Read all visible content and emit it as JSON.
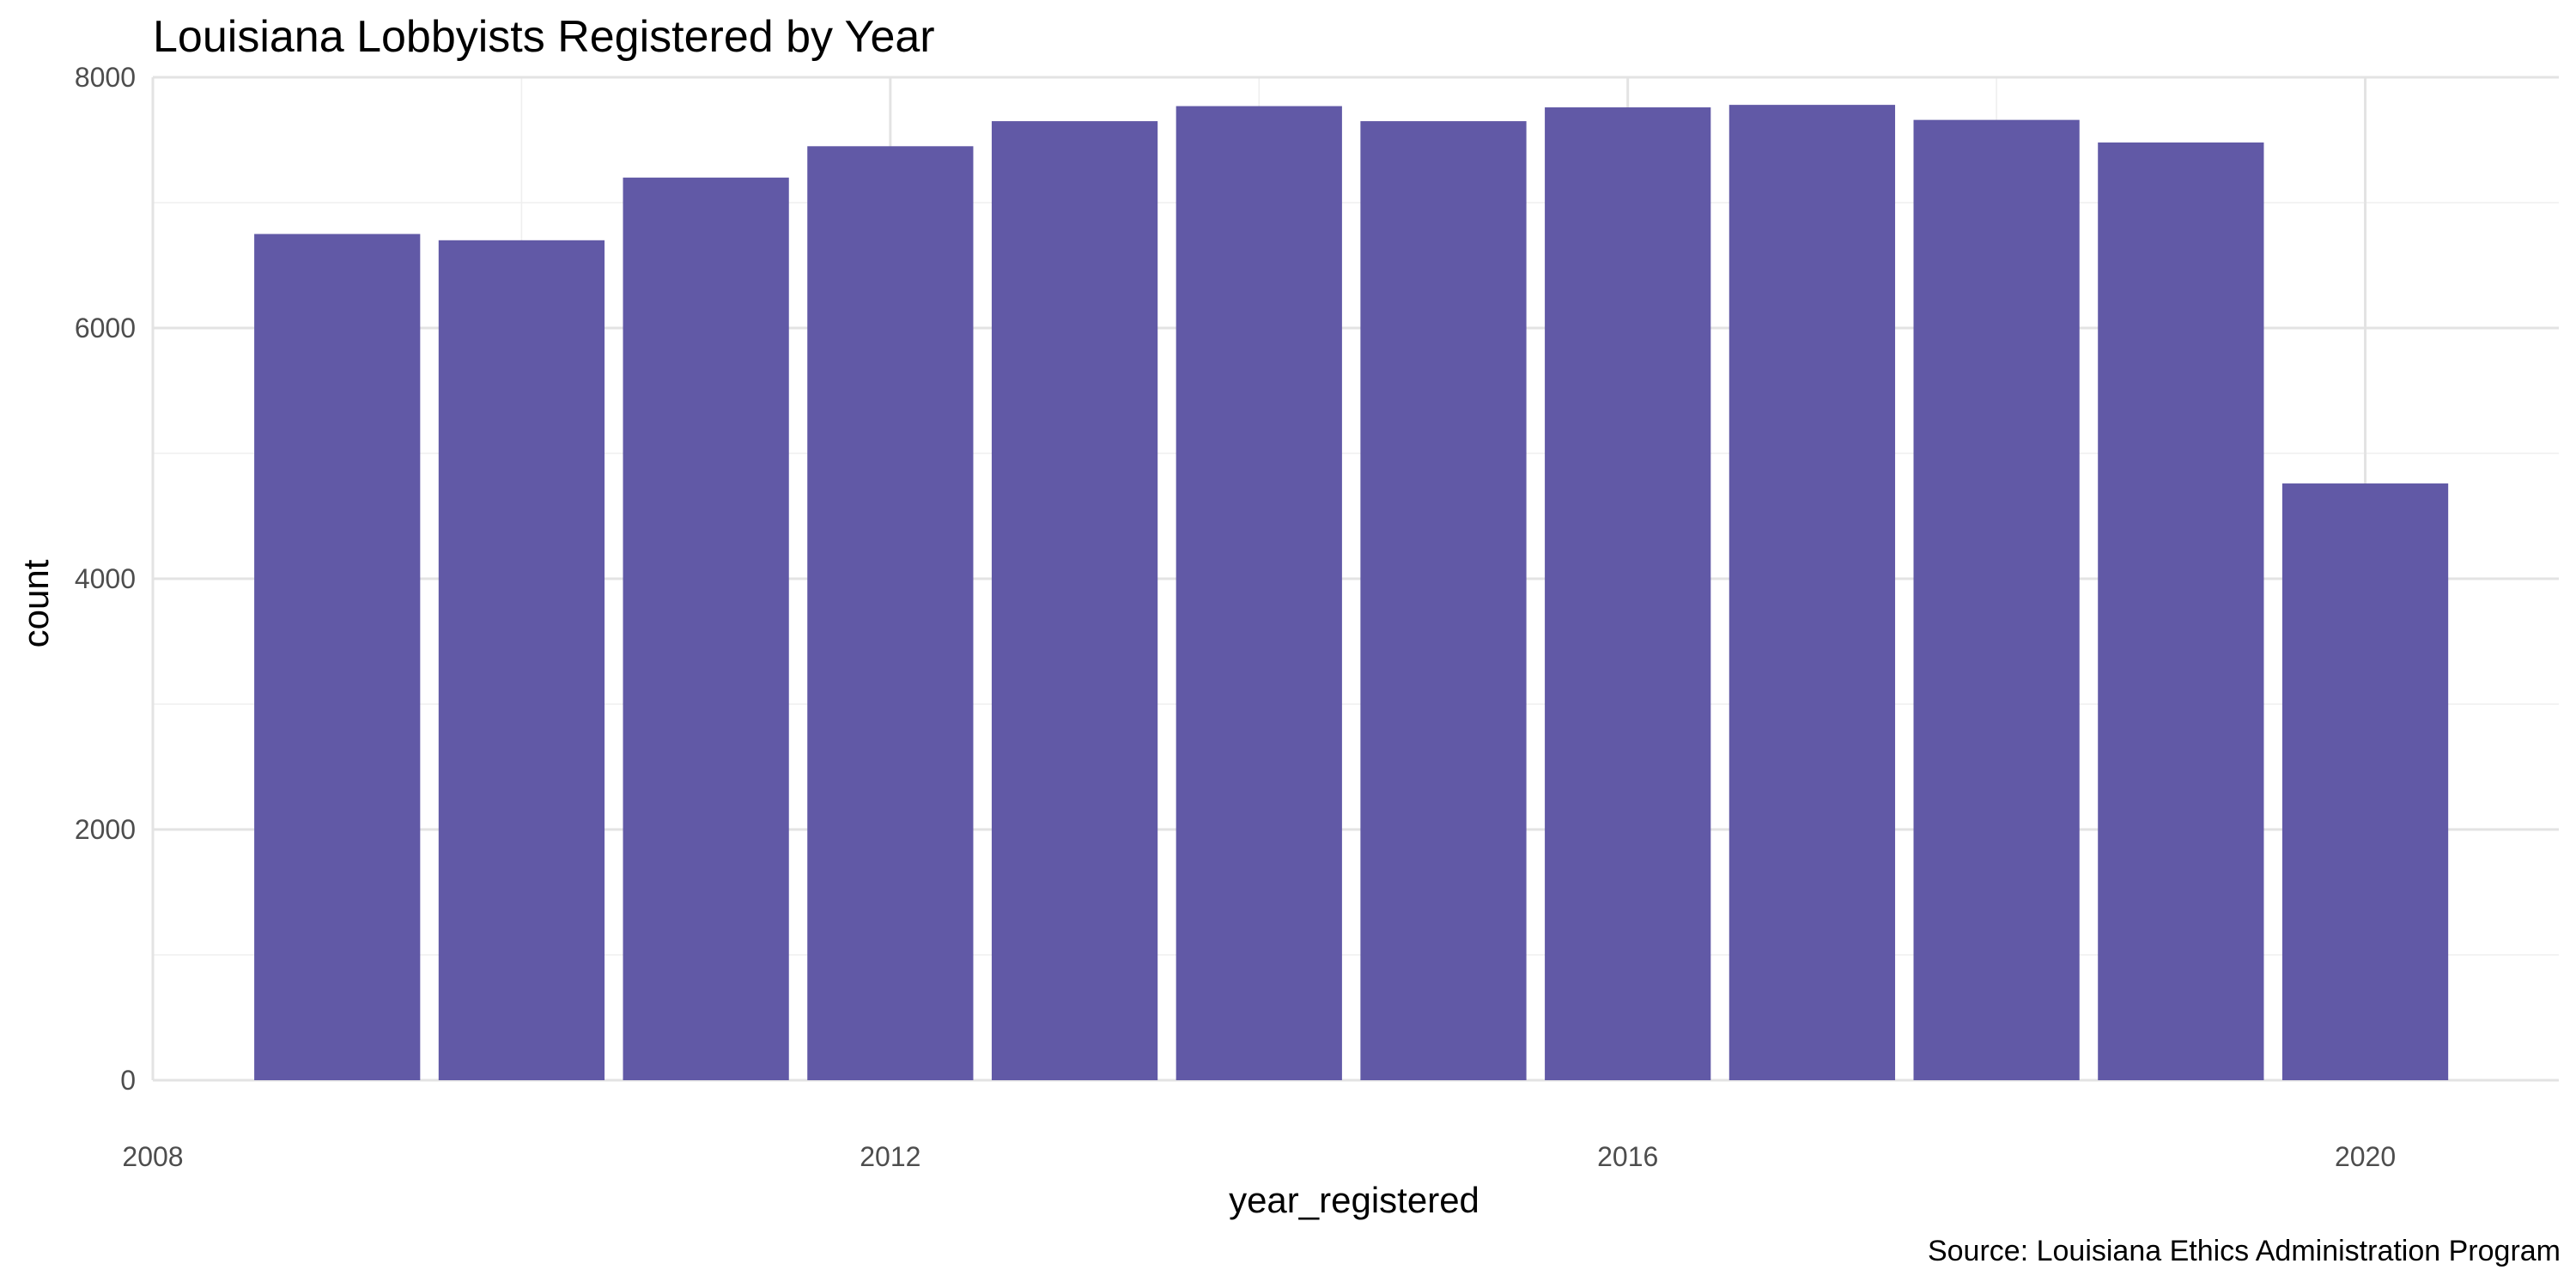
{
  "chart_data": {
    "type": "bar",
    "title": "Louisiana Lobbyists Registered by Year",
    "xlabel": "year_registered",
    "ylabel": "count",
    "caption": "Source: Louisiana Ethics Administration Program",
    "categories": [
      2009,
      2010,
      2011,
      2012,
      2013,
      2014,
      2015,
      2016,
      2017,
      2018,
      2019,
      2020
    ],
    "values": [
      6750,
      6700,
      7200,
      7450,
      7650,
      7770,
      7650,
      7760,
      7780,
      7660,
      7480,
      4760
    ],
    "xlim": [
      2008,
      2021.05
    ],
    "ylim": [
      0,
      8000
    ],
    "x_ticks": [
      2008,
      2012,
      2016,
      2020
    ],
    "y_ticks": [
      0,
      2000,
      4000,
      6000,
      8000
    ],
    "bar_color": "#6159a6",
    "grid": true,
    "legend": "none"
  }
}
